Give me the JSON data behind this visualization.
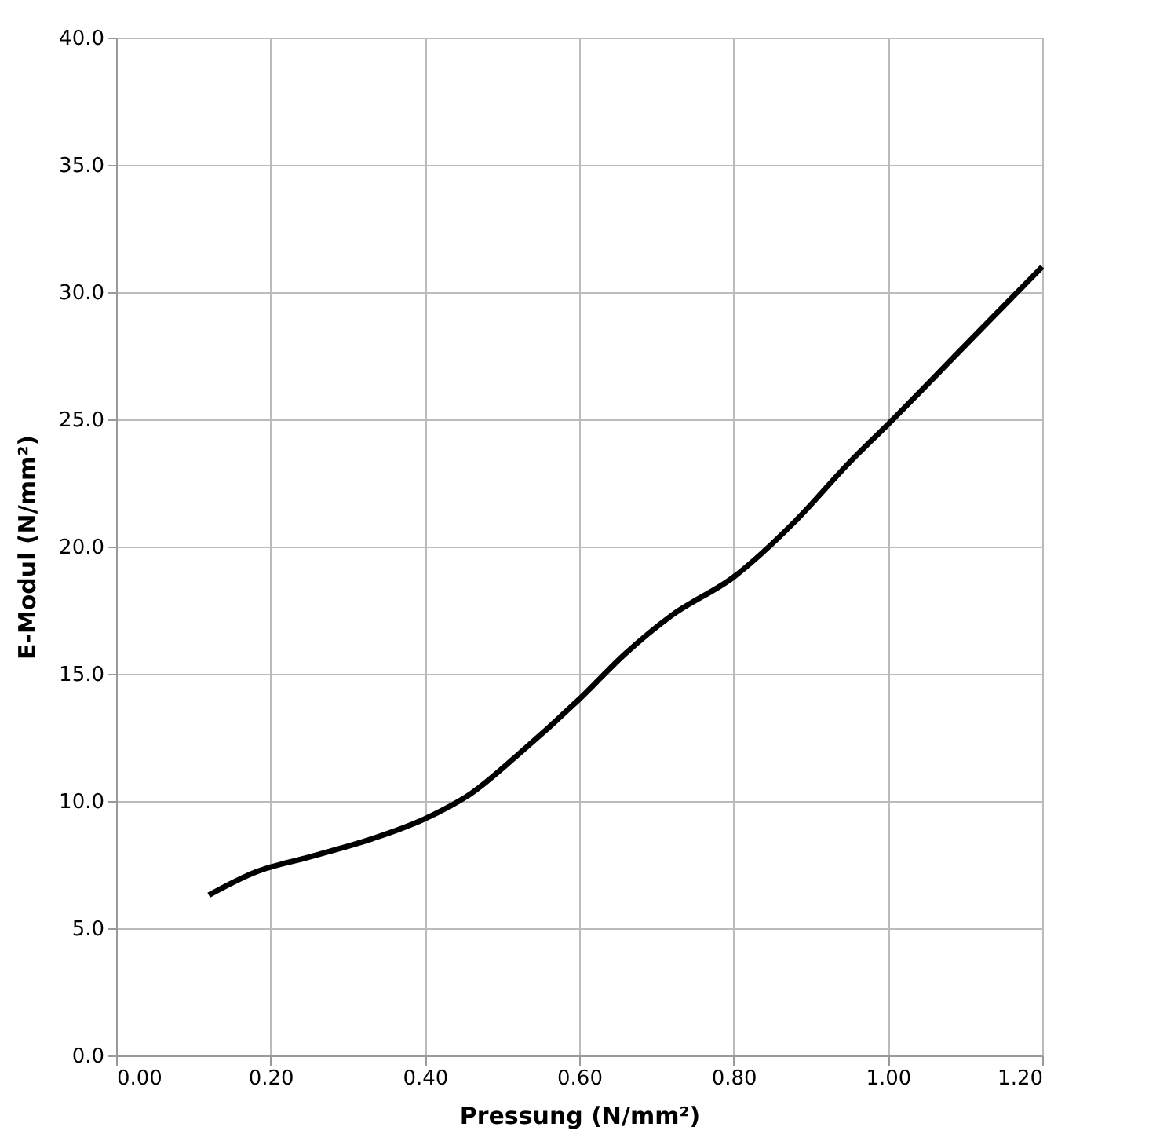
{
  "chart_data": {
    "type": "line",
    "xlabel": "Pressung (N/mm²)",
    "ylabel": "E-Modul (N/mm²)",
    "x": [
      0.12,
      0.18,
      0.25,
      0.33,
      0.4,
      0.46,
      0.52,
      0.6,
      0.66,
      0.72,
      0.8,
      0.88,
      0.95,
      1.0,
      1.1,
      1.2
    ],
    "series": [
      {
        "color": "#000000",
        "values": [
          6.3,
          7.2,
          7.8,
          8.5,
          9.3,
          10.3,
          11.8,
          14.0,
          15.8,
          17.3,
          18.8,
          21.0,
          23.3,
          24.8,
          27.9,
          31.0
        ]
      }
    ],
    "xlim": [
      0,
      1.2
    ],
    "ylim": [
      0,
      40
    ],
    "xticks": [
      {
        "value": 0,
        "label": "0.00"
      },
      {
        "value": 0.2,
        "label": "0.20"
      },
      {
        "value": 0.4,
        "label": "0.40"
      },
      {
        "value": 0.6,
        "label": "0.60"
      },
      {
        "value": 0.8,
        "label": "0.80"
      },
      {
        "value": 1.0,
        "label": "1.00"
      },
      {
        "value": 1.2,
        "label": "1.20"
      }
    ],
    "yticks": [
      {
        "value": 0,
        "label": "0.0"
      },
      {
        "value": 5,
        "label": "5.0"
      },
      {
        "value": 10,
        "label": "10.0"
      },
      {
        "value": 15,
        "label": "15.0"
      },
      {
        "value": 20,
        "label": "20.0"
      },
      {
        "value": 25,
        "label": "25.0"
      },
      {
        "value": 30,
        "label": "30.0"
      },
      {
        "value": 35,
        "label": "35.0"
      },
      {
        "value": 40,
        "label": "40.0"
      }
    ],
    "grid": true,
    "marker": "none",
    "line_style": "solid"
  }
}
